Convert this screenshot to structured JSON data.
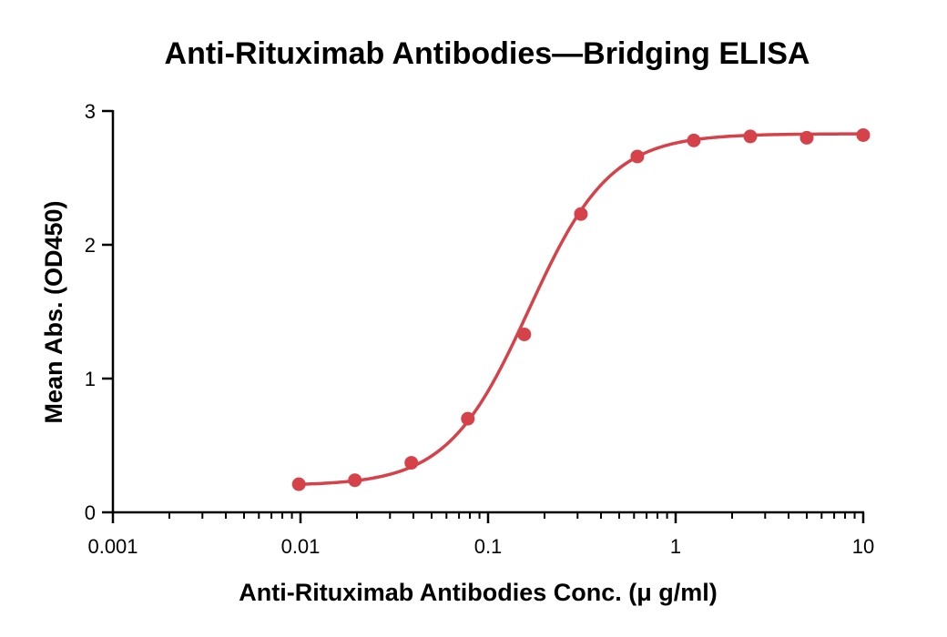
{
  "chart_data": {
    "type": "scatter",
    "title": "Anti-Rituximab Antibodies—Bridging ELISA",
    "xlabel": "Anti-Rituximab Antibodies Conc. (μ g/ml)",
    "ylabel": "Mean Abs. (OD450)",
    "x_scale": "log",
    "xlim": [
      0.001,
      10
    ],
    "ylim": [
      0,
      3
    ],
    "x_ticks": [
      {
        "value": 0.001,
        "label": "0.001"
      },
      {
        "value": 0.01,
        "label": "0.01"
      },
      {
        "value": 0.1,
        "label": "0.1"
      },
      {
        "value": 1,
        "label": "1"
      },
      {
        "value": 10,
        "label": "10"
      }
    ],
    "y_ticks": [
      {
        "value": 0,
        "label": "0"
      },
      {
        "value": 1,
        "label": "1"
      },
      {
        "value": 2,
        "label": "2"
      },
      {
        "value": 3,
        "label": "3"
      }
    ],
    "grid": false,
    "legend": "none",
    "color": "#d6424a",
    "series": [
      {
        "x": [
          0.0098,
          0.0195,
          0.039,
          0.078,
          0.156,
          0.3125,
          0.625,
          1.25,
          2.5,
          5,
          10
        ],
        "y": [
          0.21,
          0.24,
          0.37,
          0.7,
          1.33,
          2.23,
          2.66,
          2.78,
          2.81,
          2.8,
          2.82
        ]
      }
    ],
    "fit_curve": {
      "model": "4PL",
      "bottom": 0.2,
      "top": 2.83,
      "ec50": 0.165,
      "hill": 2.0,
      "x_range": [
        0.0098,
        10
      ]
    }
  }
}
